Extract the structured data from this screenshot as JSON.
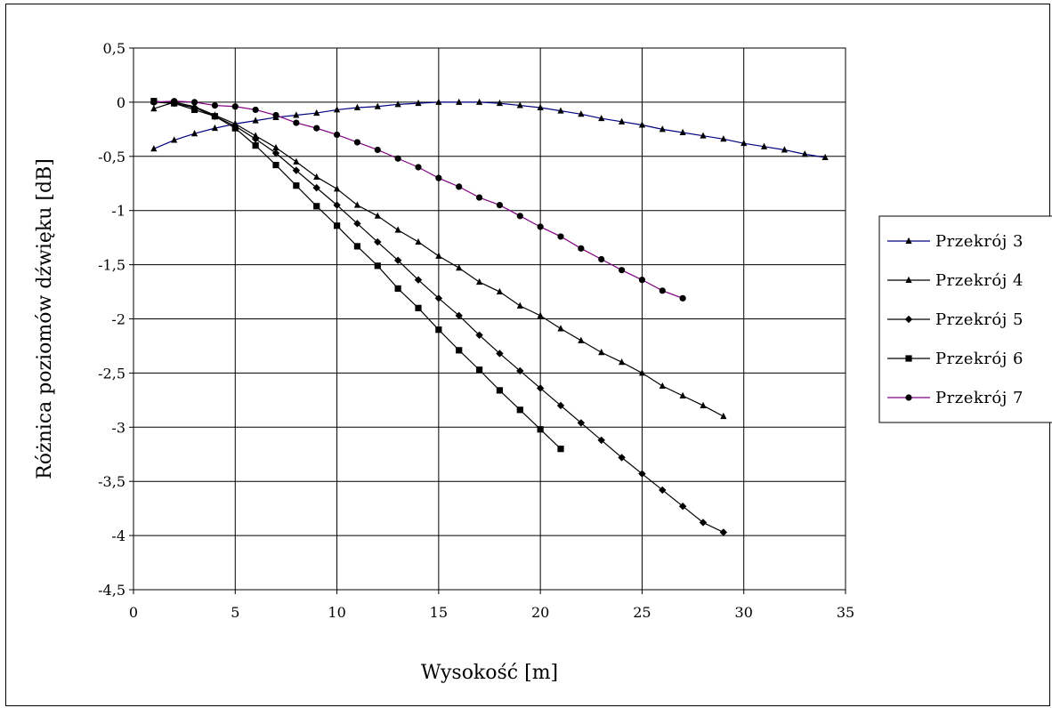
{
  "chart_data": {
    "type": "line",
    "title": "",
    "xlabel": "Wysokość [m]",
    "ylabel": "Różnica poziomów dźwięku [dB]",
    "xlim": [
      0,
      35
    ],
    "ylim": [
      -4.5,
      0.5
    ],
    "xticks": [
      0,
      5,
      10,
      15,
      20,
      25,
      30,
      35
    ],
    "yticks": [
      0.5,
      0,
      -0.5,
      -1,
      -1.5,
      -2,
      -2.5,
      -3,
      -3.5,
      -4,
      -4.5
    ],
    "xtick_labels": [
      "0",
      "5",
      "10",
      "15",
      "20",
      "25",
      "30",
      "35"
    ],
    "ytick_labels": [
      "0,5",
      "0",
      "-0,5",
      "-1",
      "-1,5",
      "-2",
      "-2,5",
      "-3",
      "-3,5",
      "-4",
      "-4,5"
    ],
    "grid": true,
    "legend_position": "right",
    "series": [
      {
        "name": "Przekrój 3",
        "color": "#000080",
        "marker": "triangle",
        "x": [
          1,
          2,
          3,
          4,
          5,
          6,
          7,
          8,
          9,
          10,
          11,
          12,
          13,
          14,
          15,
          16,
          17,
          18,
          19,
          20,
          21,
          22,
          23,
          24,
          25,
          26,
          27,
          28,
          29,
          30,
          31,
          32,
          33,
          34
        ],
        "y": [
          -0.43,
          -0.35,
          -0.29,
          -0.24,
          -0.2,
          -0.17,
          -0.14,
          -0.12,
          -0.1,
          -0.07,
          -0.05,
          -0.04,
          -0.02,
          -0.01,
          0,
          0,
          0,
          -0.01,
          -0.03,
          -0.05,
          -0.08,
          -0.11,
          -0.15,
          -0.18,
          -0.21,
          -0.25,
          -0.28,
          -0.31,
          -0.34,
          -0.38,
          -0.41,
          -0.44,
          -0.48,
          -0.51
        ]
      },
      {
        "name": "Przekrój 4",
        "color": "#000000",
        "marker": "triangle",
        "x": [
          1,
          2,
          3,
          4,
          5,
          6,
          7,
          8,
          9,
          10,
          11,
          12,
          13,
          14,
          15,
          16,
          17,
          18,
          19,
          20,
          21,
          22,
          23,
          24,
          25,
          26,
          27,
          28,
          29
        ],
        "y": [
          -0.06,
          0,
          -0.04,
          -0.12,
          -0.2,
          -0.31,
          -0.42,
          -0.55,
          -0.69,
          -0.8,
          -0.95,
          -1.05,
          -1.18,
          -1.29,
          -1.42,
          -1.53,
          -1.66,
          -1.75,
          -1.88,
          -1.97,
          -2.09,
          -2.2,
          -2.31,
          -2.4,
          -2.5,
          -2.62,
          -2.71,
          -2.8,
          -2.9
        ]
      },
      {
        "name": "Przekrój 5",
        "color": "#000000",
        "marker": "diamond",
        "x": [
          1,
          2,
          3,
          4,
          5,
          6,
          7,
          8,
          9,
          10,
          11,
          12,
          13,
          14,
          15,
          16,
          17,
          18,
          19,
          20,
          21,
          22,
          23,
          24,
          25,
          26,
          27,
          28,
          29
        ],
        "y": [
          0,
          -0.01,
          -0.05,
          -0.13,
          -0.22,
          -0.34,
          -0.47,
          -0.63,
          -0.79,
          -0.95,
          -1.12,
          -1.29,
          -1.46,
          -1.64,
          -1.81,
          -1.97,
          -2.15,
          -2.32,
          -2.48,
          -2.64,
          -2.8,
          -2.96,
          -3.12,
          -3.28,
          -3.43,
          -3.58,
          -3.73,
          -3.88,
          -3.97
        ]
      },
      {
        "name": "Przekrój 6",
        "color": "#000000",
        "marker": "square",
        "x": [
          1,
          2,
          3,
          4,
          5,
          6,
          7,
          8,
          9,
          10,
          11,
          12,
          13,
          14,
          15,
          16,
          17,
          18,
          19,
          20,
          21
        ],
        "y": [
          0.01,
          -0.01,
          -0.07,
          -0.13,
          -0.24,
          -0.4,
          -0.58,
          -0.77,
          -0.96,
          -1.14,
          -1.33,
          -1.51,
          -1.72,
          -1.9,
          -2.1,
          -2.29,
          -2.47,
          -2.66,
          -2.84,
          -3.02,
          -3.2
        ]
      },
      {
        "name": "Przekrój 7",
        "color": "#800080",
        "marker": "circle",
        "x": [
          1,
          2,
          3,
          4,
          5,
          6,
          7,
          8,
          9,
          10,
          11,
          12,
          13,
          14,
          15,
          16,
          17,
          18,
          19,
          20,
          21,
          22,
          23,
          24,
          25,
          26,
          27
        ],
        "y": [
          0,
          0.01,
          0,
          -0.03,
          -0.04,
          -0.07,
          -0.12,
          -0.19,
          -0.24,
          -0.3,
          -0.37,
          -0.44,
          -0.52,
          -0.6,
          -0.7,
          -0.78,
          -0.88,
          -0.95,
          -1.05,
          -1.15,
          -1.24,
          -1.35,
          -1.45,
          -1.55,
          -1.64,
          -1.74,
          -1.81
        ]
      }
    ]
  }
}
